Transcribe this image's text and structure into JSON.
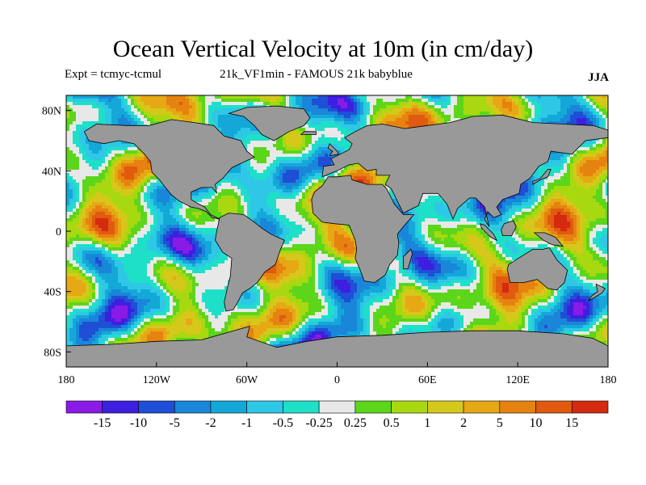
{
  "title": "Ocean Vertical Velocity at 10m (in cm/day)",
  "experiment_label": "Expt = tcmyc-tcmul",
  "run_label": "21k_VF1min - FAMOUS 21k babyblue",
  "season": "JJA",
  "land_color": "#999999",
  "map": {
    "lon_range": [
      -180,
      180
    ],
    "lat_range": [
      -90,
      90
    ],
    "lon_ticks": [
      {
        "value": -180,
        "label": "180"
      },
      {
        "value": -120,
        "label": "120W"
      },
      {
        "value": -60,
        "label": "60W"
      },
      {
        "value": 0,
        "label": "0"
      },
      {
        "value": 60,
        "label": "60E"
      },
      {
        "value": 120,
        "label": "120E"
      },
      {
        "value": 180,
        "label": "180"
      }
    ],
    "lat_ticks": [
      {
        "value": 80,
        "label": "80N"
      },
      {
        "value": 40,
        "label": "40N"
      },
      {
        "value": 0,
        "label": "0"
      },
      {
        "value": -40,
        "label": "40S"
      },
      {
        "value": -80,
        "label": "80S"
      }
    ]
  },
  "colorbar": {
    "colors": [
      "#8a1ae6",
      "#3d1fe0",
      "#1f4fd6",
      "#1a86d9",
      "#14a8d9",
      "#2ec8e6",
      "#1ee0c8",
      "#e8e8e8",
      "#5cd61a",
      "#a8d810",
      "#d6c81a",
      "#e6a814",
      "#e6820f",
      "#e05a10",
      "#d42a10"
    ],
    "labels": [
      "-15",
      "-10",
      "-5",
      "-2",
      "-1",
      "-0.5",
      "-0.25",
      "0.25",
      "0.5",
      "1",
      "2",
      "5",
      "10",
      "15"
    ]
  }
}
